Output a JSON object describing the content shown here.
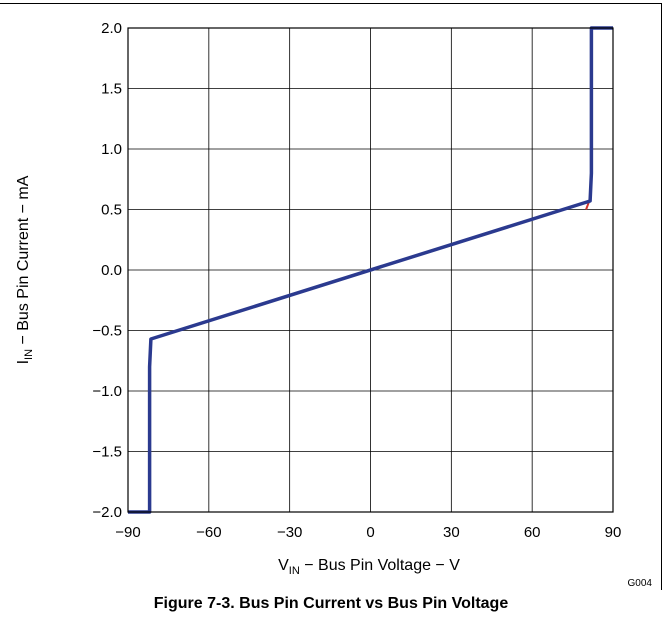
{
  "figure": {
    "caption": "Figure 7-3. Bus Pin Current vs Bus Pin Voltage",
    "code": "G004"
  },
  "chart_data": {
    "type": "line",
    "title": "",
    "xlabel_main": "V",
    "xlabel_sub": "IN",
    "xlabel_rest": " − Bus Pin Voltage − V",
    "ylabel_main": "I",
    "ylabel_sub": "IN",
    "ylabel_rest": " − Bus Pin Current − mA",
    "xlim": [
      -90,
      90
    ],
    "ylim": [
      -2.0,
      2.0
    ],
    "xticks": [
      -90,
      -60,
      -30,
      0,
      30,
      60,
      90
    ],
    "xtick_labels": [
      "−90",
      "−60",
      "−30",
      "0",
      "30",
      "60",
      "90"
    ],
    "yticks": [
      2.0,
      1.5,
      1.0,
      0.5,
      0.0,
      -0.5,
      -1.0,
      -1.5,
      -2.0
    ],
    "ytick_labels": [
      "2.0",
      "1.5",
      "1.0",
      "0.5",
      "0.0",
      "−0.5",
      "−1.0",
      "−1.5",
      "−2.0"
    ],
    "grid": true,
    "series": [
      {
        "color": "#2b3a8f",
        "x": [
          -90,
          -82,
          -82,
          -81.5,
          81.5,
          82,
          82,
          90
        ],
        "y": [
          -2.0,
          -2.0,
          -0.8,
          -0.57,
          0.57,
          0.8,
          2.0,
          2.0
        ]
      },
      {
        "color": "#d0342c",
        "x": [
          80,
          81.7,
          82
        ],
        "y": [
          0.5,
          0.6,
          0.9
        ]
      }
    ]
  }
}
